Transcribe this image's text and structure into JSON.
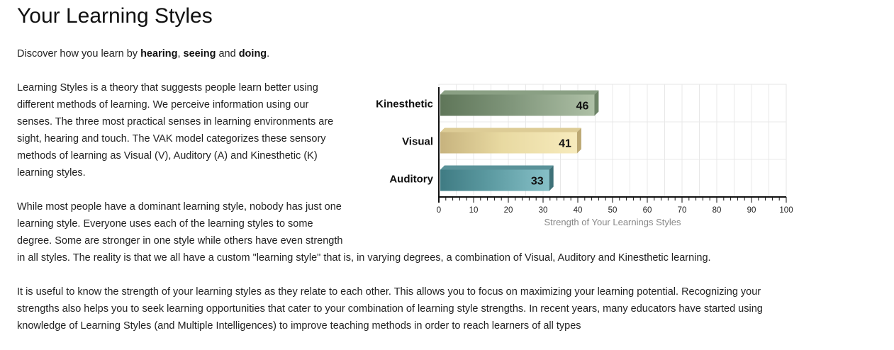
{
  "page": {
    "title": "Your Learning Styles",
    "intro": {
      "prefix": "Discover how you learn by ",
      "word1": "hearing",
      "sep1": ", ",
      "word2": "seeing",
      "sep2": " and ",
      "word3": "doing",
      "suffix": "."
    },
    "para1_lines": [
      "Learning Styles is a theory that suggests people learn better using",
      "different methods of learning. We perceive information using our",
      "senses. The three most practical senses in learning environments are",
      "sight, hearing and touch. The VAK model categorizes these sensory",
      "methods of learning as Visual (V), Auditory (A) and Kinesthetic (K)",
      "learning styles."
    ],
    "para2_lines": [
      "While most people have a dominant learning style, nobody has just one",
      "learning style. Everyone uses each of the learning styles to some",
      "degree. Some are stronger in one style while others have even strength",
      "in all styles. The reality is that we all have a custom \"learning style\" that is, in varying degrees, a combination of Visual, Auditory and Kinesthetic learning."
    ],
    "para3_lines": [
      "It is useful to know the strength of your learning styles as they relate to each other. This allows you to focus on maximizing your learning potential. Recognizing your",
      "strengths also helps you to seek learning opportunities that cater to your combination of learning style strengths. In recent years, many educators have started using",
      "knowledge of Learning Styles (and Multiple Intelligences) to improve teaching methods in order to reach learners of all types"
    ]
  },
  "chart_data": {
    "type": "bar",
    "orientation": "horizontal",
    "categories": [
      "Kinesthetic",
      "Visual",
      "Auditory"
    ],
    "values": [
      46,
      41,
      33
    ],
    "xlabel": "Strength of Your Learnings Styles",
    "xlim": [
      0,
      100
    ],
    "xticks": [
      0,
      10,
      20,
      30,
      40,
      50,
      60,
      70,
      80,
      90,
      100
    ],
    "grid": true,
    "data_labels": true,
    "colors": [
      {
        "light": "#aec0a6",
        "mid": "#7f957a",
        "dark": "#5f7659",
        "top": "#8aa084",
        "side": "#6d8467"
      },
      {
        "light": "#f7ebbd",
        "mid": "#e8d9a1",
        "dark": "#c7b37e",
        "top": "#ddcc96",
        "side": "#bca873"
      },
      {
        "light": "#86c0c7",
        "mid": "#5c9aa1",
        "dark": "#3f7b83",
        "top": "#5a9299",
        "side": "#3e7178"
      }
    ]
  }
}
